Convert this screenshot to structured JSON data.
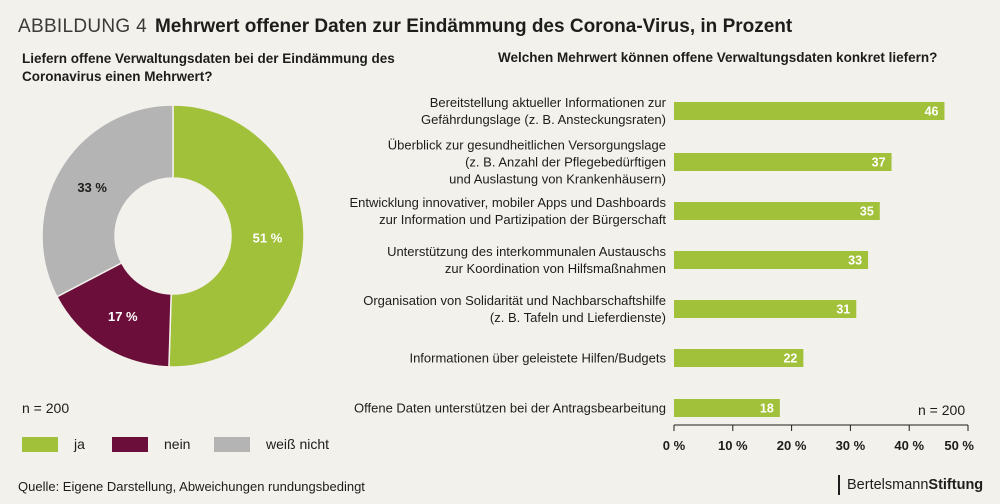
{
  "figure": {
    "label": "ABBILDUNG 4",
    "title": "Mehrwert offener Daten zur Eindämmung des Corona-Virus, in Prozent"
  },
  "source": "Quelle: Eigene Darstellung, Abweichungen rundungsbedingt",
  "brand": {
    "part1": "Bertelsmann",
    "part2": "Stiftung"
  },
  "colors": {
    "ja": "#a2c13a",
    "nein": "#6b0f3a",
    "weiss_nicht": "#b4b4b4",
    "bar": "#a2c13a",
    "background": "#f3f1ec"
  },
  "chart_data": [
    {
      "type": "pie",
      "donut": true,
      "title": "Liefern offene Verwaltungsdaten bei der Eindämmung des Coronavirus einen Mehrwert?",
      "note": "n = 200",
      "legend_position": "bottom-left",
      "slices": [
        {
          "name": "ja",
          "value": 51,
          "label": "51 %",
          "color": "#a2c13a",
          "label_color": "#ffffff"
        },
        {
          "name": "nein",
          "value": 17,
          "label": "17 %",
          "color": "#6b0f3a",
          "label_color": "#ffffff"
        },
        {
          "name": "weiß nicht",
          "value": 33,
          "label": "33 %",
          "color": "#b4b4b4",
          "label_color": "#1d1d1b"
        }
      ]
    },
    {
      "type": "bar",
      "orientation": "horizontal",
      "title": "Welchen Mehrwert können offene Verwaltungsdaten konkret liefern?",
      "note": "n = 200",
      "xlim": [
        0,
        50
      ],
      "xticks": [
        "0 %",
        "10 %",
        "20 %",
        "30 %",
        "40 %",
        "50 %"
      ],
      "grid": false,
      "categories": [
        [
          "Bereitstellung aktueller Informationen zur",
          "Gefährdungslage (z. B. Ansteckungsraten)"
        ],
        [
          "Überblick zur gesundheitlichen Versorgungslage",
          "(z. B.  Anzahl der Pflegebedürftigen",
          "und Auslastung von Krankenhäusern)"
        ],
        [
          "Entwicklung innovativer, mobiler Apps und Dashboards",
          "zur Information und Partizipation der Bürgerschaft"
        ],
        [
          "Unterstützung des interkommunalen Austauschs",
          "zur Koordination von Hilfsmaßnahmen"
        ],
        [
          "Organisation von Solidarität und Nachbarschaftshilfe",
          "(z. B. Tafeln und Lieferdienste)"
        ],
        [
          "Informationen über geleistete Hilfen/Budgets"
        ],
        [
          "Offene Daten unterstützen bei der Antragsbearbeitung"
        ]
      ],
      "values": [
        46,
        37,
        35,
        33,
        31,
        22,
        18
      ],
      "color": "#a2c13a"
    }
  ]
}
